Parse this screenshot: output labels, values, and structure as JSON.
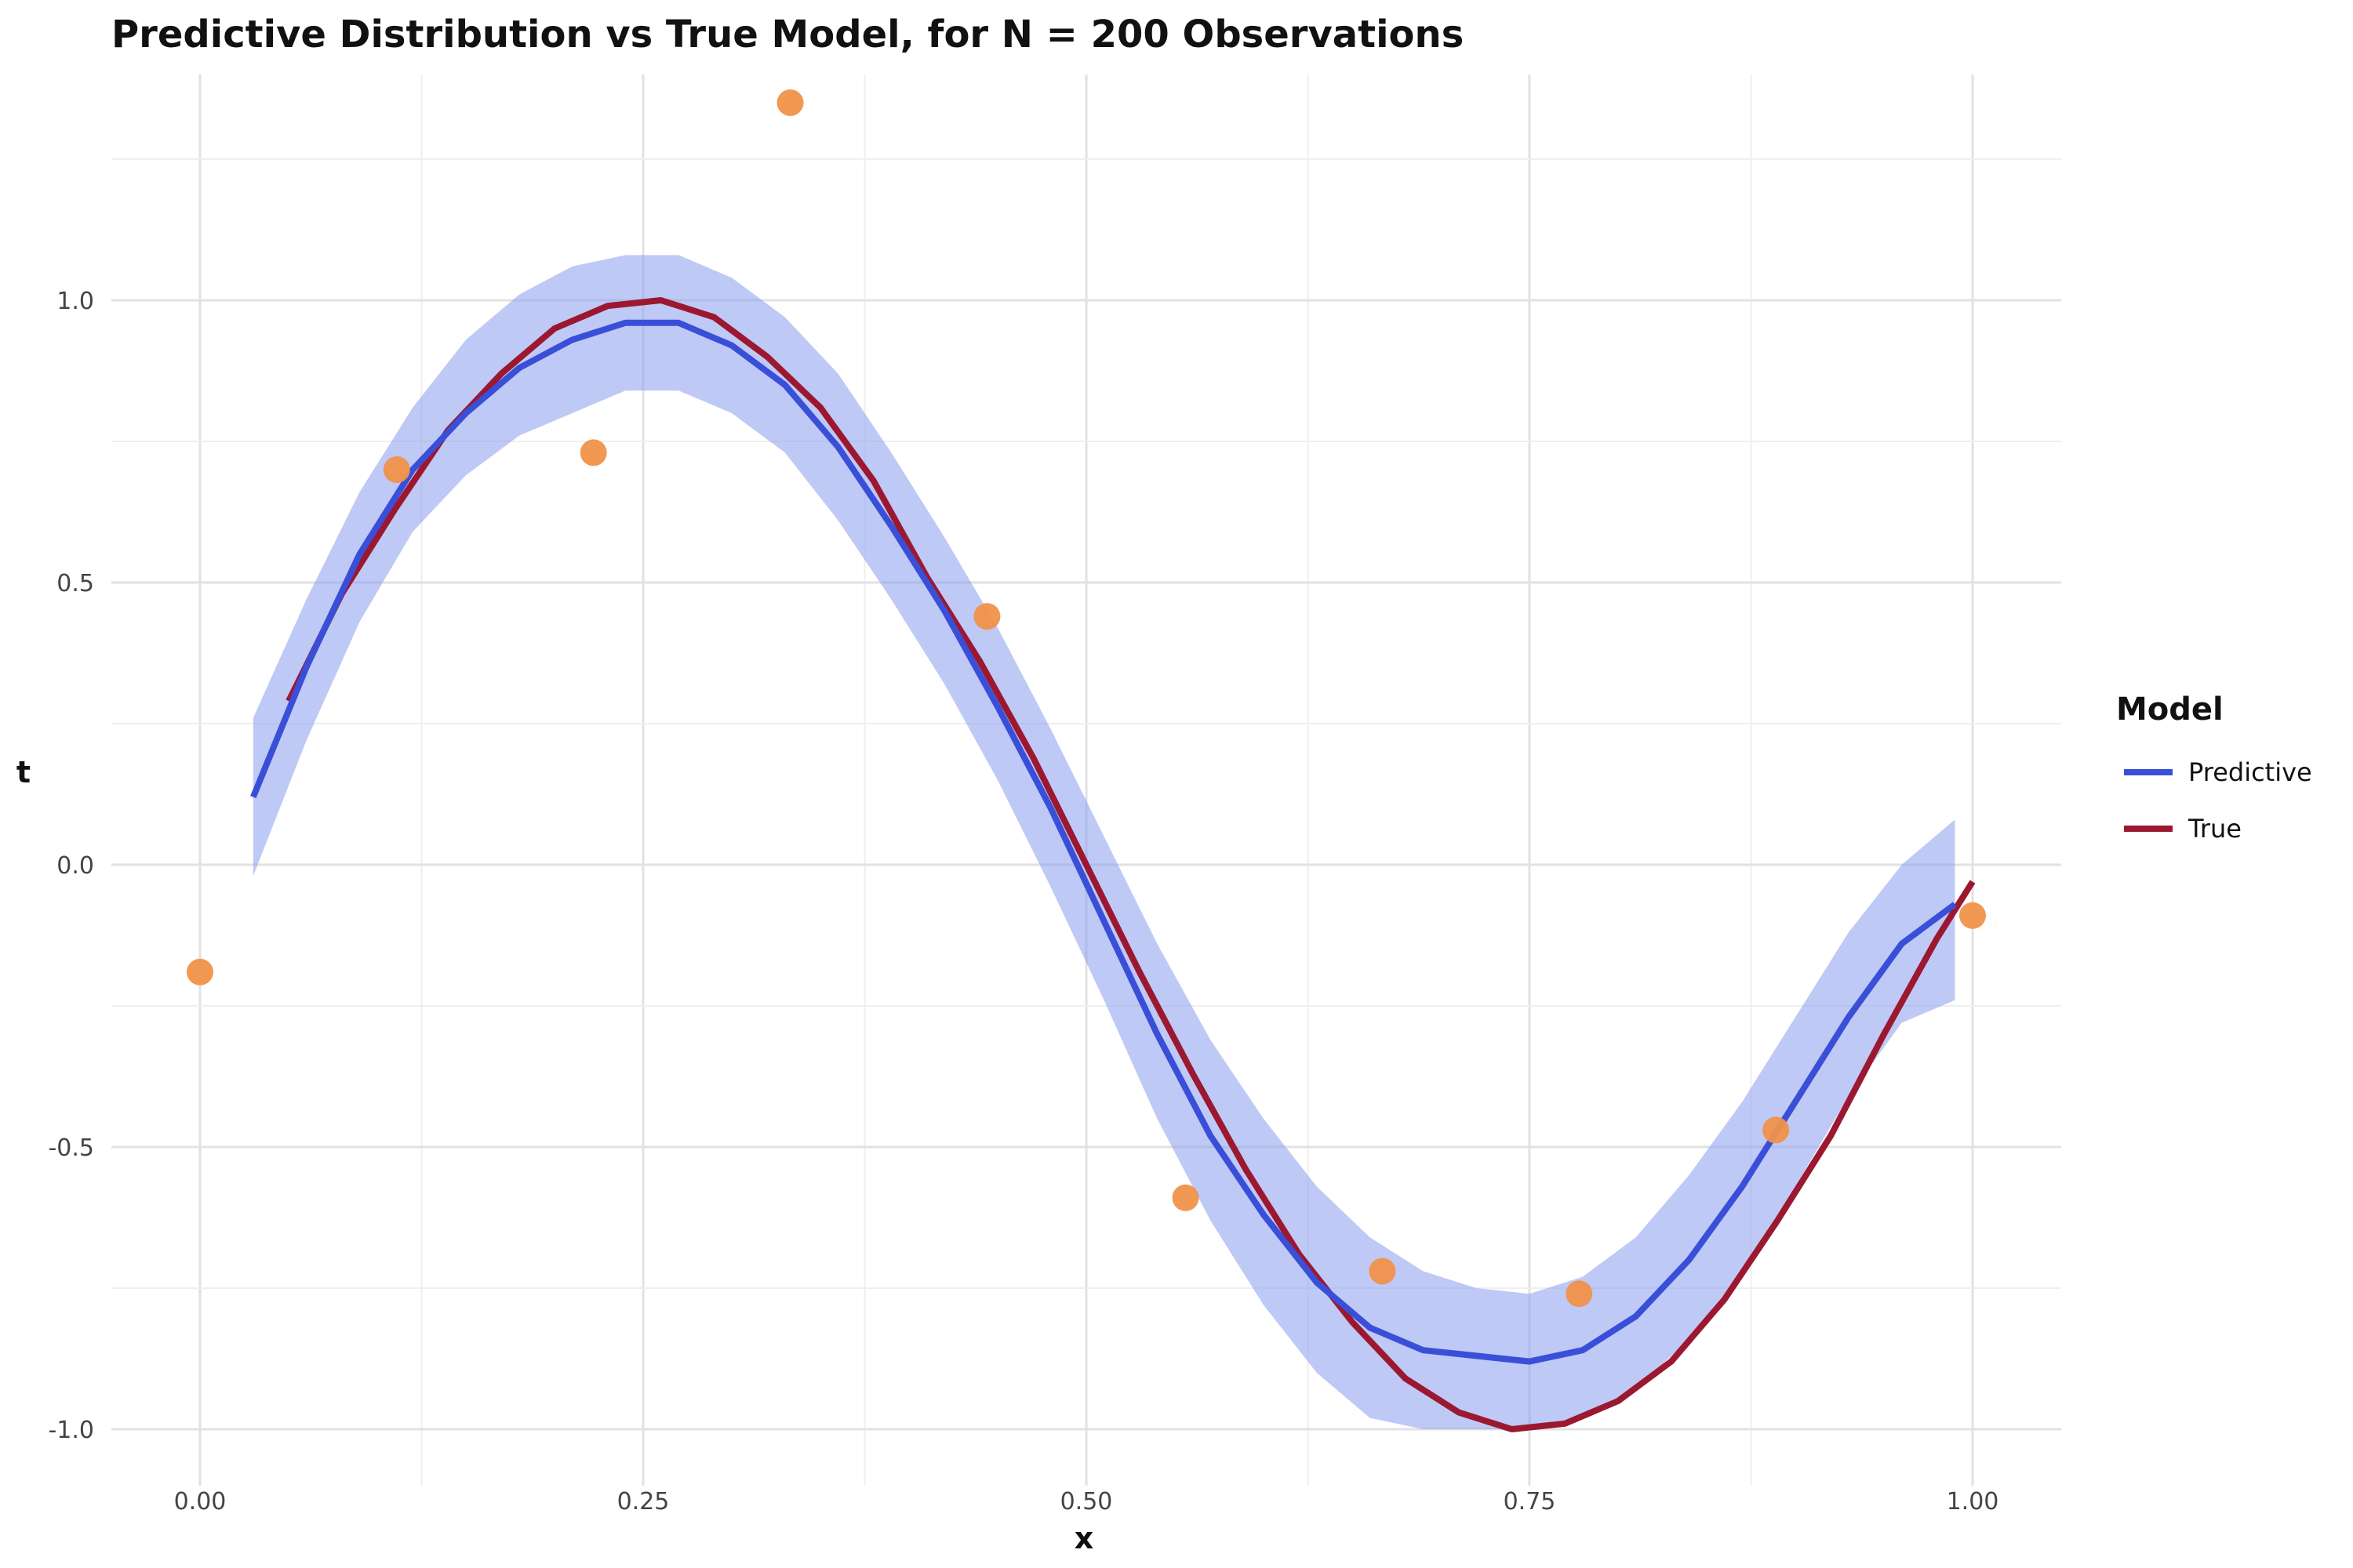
{
  "chart_data": {
    "type": "line",
    "title": "Predictive Distribution vs True Model, for N = 200 Observations",
    "xlabel": "x",
    "ylabel": "t",
    "xlim": [
      -0.05,
      1.05
    ],
    "ylim": [
      -1.1,
      1.4
    ],
    "x_ticks": [
      "0.00",
      "0.25",
      "0.50",
      "0.75",
      "1.00"
    ],
    "y_ticks": [
      "-1.0",
      "-0.5",
      "0.0",
      "0.5",
      "1.0"
    ],
    "grid": true,
    "legend": {
      "title": "Model",
      "placement": "right"
    },
    "series": [
      {
        "name": "Predictive",
        "color": "#3a4fd8",
        "x": [
          0.03,
          0.06,
          0.09,
          0.12,
          0.15,
          0.18,
          0.21,
          0.24,
          0.27,
          0.3,
          0.33,
          0.36,
          0.39,
          0.42,
          0.45,
          0.48,
          0.51,
          0.54,
          0.57,
          0.6,
          0.63,
          0.66,
          0.69,
          0.72,
          0.75,
          0.78,
          0.81,
          0.84,
          0.87,
          0.9,
          0.93,
          0.96,
          0.99
        ],
        "y": [
          0.12,
          0.35,
          0.55,
          0.7,
          0.8,
          0.88,
          0.93,
          0.96,
          0.96,
          0.92,
          0.85,
          0.74,
          0.6,
          0.45,
          0.28,
          0.1,
          -0.1,
          -0.3,
          -0.48,
          -0.62,
          -0.74,
          -0.82,
          -0.86,
          -0.87,
          -0.88,
          -0.86,
          -0.8,
          -0.7,
          -0.57,
          -0.42,
          -0.27,
          -0.14,
          -0.07
        ]
      },
      {
        "name": "True",
        "color": "#9b1830",
        "x": [
          0.05,
          0.08,
          0.11,
          0.14,
          0.17,
          0.2,
          0.23,
          0.26,
          0.29,
          0.32,
          0.35,
          0.38,
          0.41,
          0.44,
          0.47,
          0.5,
          0.53,
          0.56,
          0.59,
          0.62,
          0.65,
          0.68,
          0.71,
          0.74,
          0.77,
          0.8,
          0.83,
          0.86,
          0.89,
          0.92,
          0.95,
          0.98,
          1.0
        ],
        "y": [
          0.29,
          0.48,
          0.63,
          0.77,
          0.87,
          0.95,
          0.99,
          1.0,
          0.97,
          0.9,
          0.81,
          0.68,
          0.51,
          0.36,
          0.19,
          0.0,
          -0.19,
          -0.37,
          -0.54,
          -0.69,
          -0.81,
          -0.91,
          -0.97,
          -1.0,
          -0.99,
          -0.95,
          -0.88,
          -0.77,
          -0.63,
          -0.48,
          -0.3,
          -0.13,
          -0.03
        ]
      }
    ],
    "band": {
      "color": "#8b9cec",
      "x": [
        0.03,
        0.06,
        0.09,
        0.12,
        0.15,
        0.18,
        0.21,
        0.24,
        0.27,
        0.3,
        0.33,
        0.36,
        0.39,
        0.42,
        0.45,
        0.48,
        0.51,
        0.54,
        0.57,
        0.6,
        0.63,
        0.66,
        0.69,
        0.72,
        0.75,
        0.78,
        0.81,
        0.84,
        0.87,
        0.9,
        0.93,
        0.96,
        0.99
      ],
      "upper": [
        0.26,
        0.47,
        0.66,
        0.81,
        0.93,
        1.01,
        1.06,
        1.08,
        1.08,
        1.04,
        0.97,
        0.87,
        0.73,
        0.58,
        0.42,
        0.24,
        0.05,
        -0.14,
        -0.31,
        -0.45,
        -0.57,
        -0.66,
        -0.72,
        -0.75,
        -0.76,
        -0.73,
        -0.66,
        -0.55,
        -0.42,
        -0.27,
        -0.12,
        0.0,
        0.08
      ],
      "lower": [
        -0.02,
        0.22,
        0.43,
        0.59,
        0.69,
        0.76,
        0.8,
        0.84,
        0.84,
        0.8,
        0.73,
        0.61,
        0.47,
        0.32,
        0.15,
        -0.04,
        -0.24,
        -0.45,
        -0.63,
        -0.78,
        -0.9,
        -0.98,
        -1.0,
        -1.0,
        -1.0,
        -0.98,
        -0.93,
        -0.84,
        -0.72,
        -0.57,
        -0.41,
        -0.28,
        -0.24
      ]
    },
    "points": {
      "color": "#f0924a",
      "x": [
        0.0,
        0.111,
        0.222,
        0.333,
        0.444,
        0.556,
        0.667,
        0.778,
        0.889,
        1.0
      ],
      "y": [
        -0.19,
        0.7,
        0.73,
        1.35,
        0.44,
        -0.59,
        -0.72,
        -0.76,
        -0.47,
        -0.09
      ]
    }
  }
}
